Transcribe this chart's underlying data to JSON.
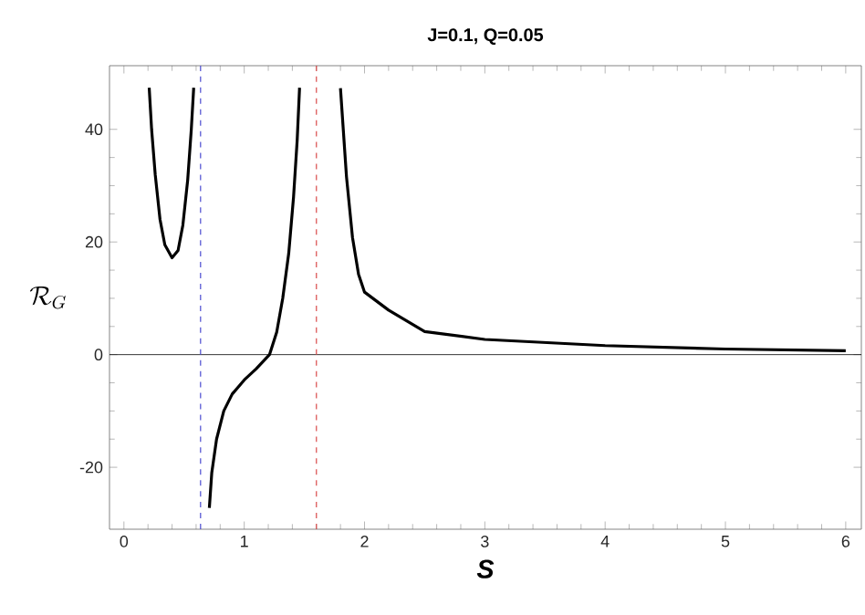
{
  "chart_data": {
    "type": "line",
    "title": "J=0.1, Q=0.05",
    "xlabel": "S",
    "ylabel": "\\mathcal{R}_G",
    "xlim": [
      -0.12,
      6.13
    ],
    "ylim": [
      -31,
      51.3
    ],
    "xticks": [
      0,
      1,
      2,
      3,
      4,
      5,
      6
    ],
    "yticks": [
      -20,
      0,
      20,
      40
    ],
    "series": [
      {
        "color": "#000000",
        "x": [
          0.21,
          0.23,
          0.26,
          0.3,
          0.34,
          0.4,
          0.45,
          0.49,
          0.53,
          0.56,
          0.58,
          0.645,
          0.71,
          0.73,
          0.77,
          0.83,
          0.9,
          1.0,
          1.1,
          1.21,
          1.27,
          1.32,
          1.37,
          1.41,
          1.44,
          1.46,
          1.6,
          1.8,
          1.85,
          1.9,
          1.95,
          2.0,
          2.2,
          2.5,
          3.0,
          4.0,
          5.0,
          6.0
        ],
        "values": [
          47.4,
          40,
          32,
          24,
          19.5,
          17.2,
          18.5,
          23,
          31,
          40,
          47.4,
          null,
          -27.2,
          -21,
          -15,
          -10,
          -7,
          -4.5,
          -2.5,
          0,
          4,
          10,
          18,
          28,
          38,
          47.4,
          null,
          47.3,
          31.6,
          20.8,
          14.3,
          11.1,
          7.9,
          4.1,
          2.7,
          1.6,
          1.0,
          0.7
        ]
      }
    ],
    "ref_lines": [
      {
        "axis": "y",
        "value": 0,
        "color": "#000000",
        "line_style": "solid"
      },
      {
        "axis": "x",
        "value": 0.637,
        "color": "#4a4ad0",
        "line_style": "dashed"
      },
      {
        "axis": "x",
        "value": 1.6,
        "color": "#d94a4a",
        "line_style": "dashed"
      }
    ]
  }
}
